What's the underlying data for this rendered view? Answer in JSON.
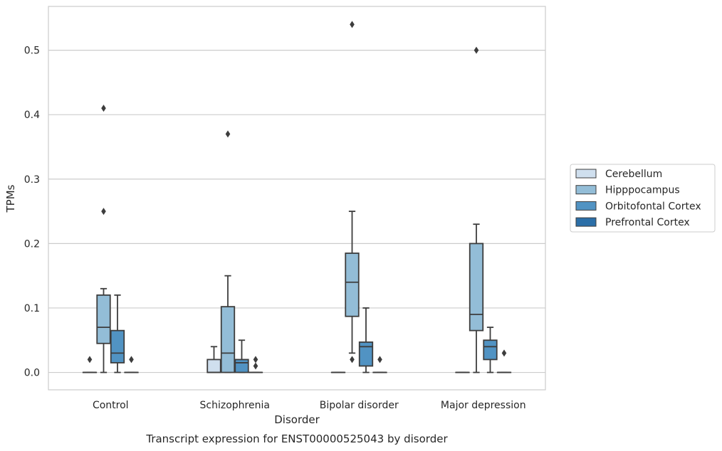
{
  "chart_data": {
    "type": "box",
    "xlabel": "Disorder",
    "ylabel": "TPMs",
    "caption": "Transcript expression for ENST00000525043 by disorder",
    "ylim": [
      -0.027,
      0.568
    ],
    "yticks": [
      0.0,
      0.1,
      0.2,
      0.3,
      0.4,
      0.5
    ],
    "ytick_labels": [
      "0.0",
      "0.1",
      "0.2",
      "0.3",
      "0.4",
      "0.5"
    ],
    "grid": "horizontal",
    "legend_position": "right",
    "categories": [
      "Control",
      "Schizophrenia",
      "Bipolar disorder",
      "Major depression"
    ],
    "series": [
      {
        "name": "Cerebellum",
        "color": "#cfdfee",
        "boxes": [
          {
            "whislo": 0.0,
            "q1": 0.0,
            "med": 0.0,
            "q3": 0.0,
            "whishi": 0.0,
            "fliers": [
              0.02
            ]
          },
          {
            "whislo": 0.0,
            "q1": 0.0,
            "med": 0.0,
            "q3": 0.02,
            "whishi": 0.04,
            "fliers": []
          },
          {
            "whislo": 0.0,
            "q1": 0.0,
            "med": 0.0,
            "q3": 0.0,
            "whishi": 0.0,
            "fliers": []
          },
          {
            "whislo": 0.0,
            "q1": 0.0,
            "med": 0.0,
            "q3": 0.0,
            "whishi": 0.0,
            "fliers": []
          }
        ]
      },
      {
        "name": "Hipppocampus",
        "color": "#93bdd7",
        "boxes": [
          {
            "whislo": 0.0,
            "q1": 0.045,
            "med": 0.07,
            "q3": 0.12,
            "whishi": 0.13,
            "fliers": [
              0.25,
              0.41
            ]
          },
          {
            "whislo": 0.0,
            "q1": 0.0,
            "med": 0.03,
            "q3": 0.102,
            "whishi": 0.15,
            "fliers": [
              0.37
            ]
          },
          {
            "whislo": 0.03,
            "q1": 0.087,
            "med": 0.14,
            "q3": 0.185,
            "whishi": 0.25,
            "fliers": [
              0.02,
              0.54
            ]
          },
          {
            "whislo": 0.0,
            "q1": 0.065,
            "med": 0.09,
            "q3": 0.2,
            "whishi": 0.23,
            "fliers": [
              0.5
            ]
          }
        ]
      },
      {
        "name": "Orbitofontal Cortex",
        "color": "#5193c3",
        "boxes": [
          {
            "whislo": 0.0,
            "q1": 0.015,
            "med": 0.03,
            "q3": 0.065,
            "whishi": 0.12,
            "fliers": []
          },
          {
            "whislo": 0.0,
            "q1": 0.0,
            "med": 0.015,
            "q3": 0.02,
            "whishi": 0.05,
            "fliers": []
          },
          {
            "whislo": 0.0,
            "q1": 0.01,
            "med": 0.04,
            "q3": 0.047,
            "whishi": 0.1,
            "fliers": []
          },
          {
            "whislo": 0.0,
            "q1": 0.02,
            "med": 0.04,
            "q3": 0.05,
            "whishi": 0.07,
            "fliers": []
          }
        ]
      },
      {
        "name": "Prefrontal Cortex",
        "color": "#2b6fa8",
        "boxes": [
          {
            "whislo": 0.0,
            "q1": 0.0,
            "med": 0.0,
            "q3": 0.0,
            "whishi": 0.0,
            "fliers": [
              0.02
            ]
          },
          {
            "whislo": 0.0,
            "q1": 0.0,
            "med": 0.0,
            "q3": 0.0,
            "whishi": 0.0,
            "fliers": [
              0.01,
              0.02
            ]
          },
          {
            "whislo": 0.0,
            "q1": 0.0,
            "med": 0.0,
            "q3": 0.0,
            "whishi": 0.0,
            "fliers": [
              0.02
            ]
          },
          {
            "whislo": 0.0,
            "q1": 0.0,
            "med": 0.0,
            "q3": 0.0,
            "whishi": 0.0,
            "fliers": [
              0.03
            ]
          }
        ]
      }
    ]
  }
}
